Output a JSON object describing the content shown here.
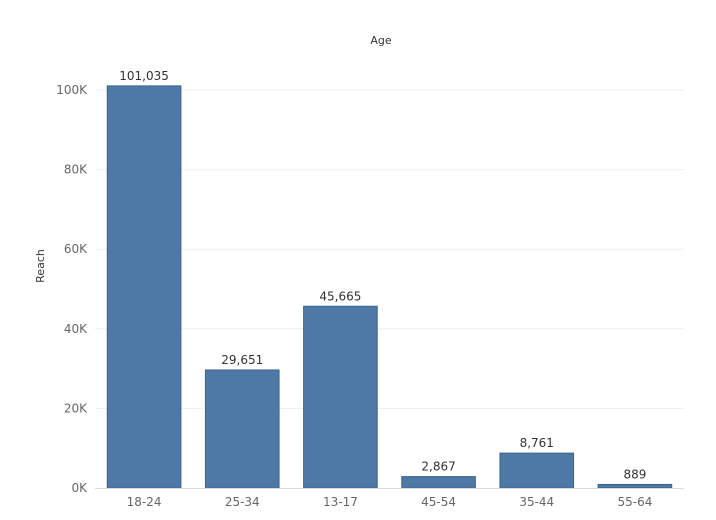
{
  "chart_data": {
    "type": "bar",
    "title": "Age",
    "xlabel": "",
    "ylabel": "Reach",
    "categories": [
      "18-24",
      "25-34",
      "13-17",
      "45-54",
      "35-44",
      "55-64"
    ],
    "values": [
      101035,
      29651,
      45665,
      2867,
      8761,
      889
    ],
    "value_labels": [
      "101,035",
      "29,651",
      "45,665",
      "2,867",
      "8,761",
      "889"
    ],
    "yticks": [
      0,
      20000,
      40000,
      60000,
      80000,
      100000
    ],
    "ytick_labels": [
      "0K",
      "20K",
      "40K",
      "60K",
      "80K",
      "100K"
    ],
    "ylim": [
      0,
      100000
    ],
    "grid": true,
    "bar_color": "#4e79a7",
    "bar_edge_color": "#3a6391"
  }
}
